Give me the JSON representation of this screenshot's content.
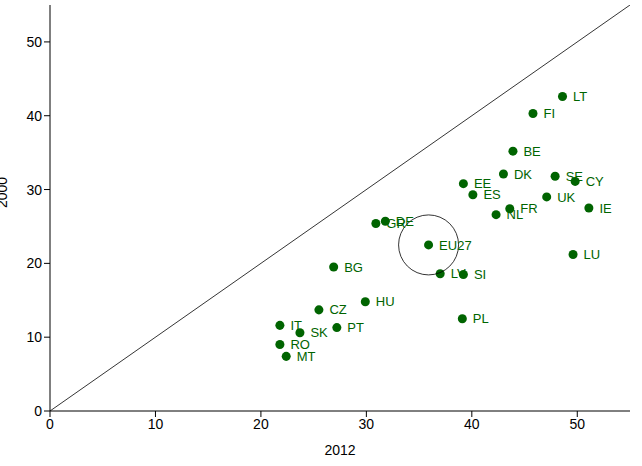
{
  "chart_data": {
    "type": "scatter",
    "x_label": "2012",
    "y_label": "2000",
    "xlim": [
      0,
      55
    ],
    "ylim": [
      0,
      55
    ],
    "xticks": [
      0,
      10,
      20,
      30,
      40,
      50
    ],
    "yticks": [
      0,
      10,
      20,
      30,
      40,
      50
    ],
    "grid": false,
    "marker": "circle",
    "diagonal": true,
    "highlight": "EU27",
    "series": [
      {
        "color": "#006400",
        "labels": [
          "LT",
          "FI",
          "BE",
          "SE",
          "CY",
          "DK",
          "EE",
          "ES",
          "UK",
          "FR",
          "IE",
          "NL",
          "DE",
          "GR",
          "EU27",
          "LU",
          "LV",
          "SI",
          "BG",
          "HU",
          "PL",
          "CZ",
          "IT",
          "SK",
          "PT",
          "RO",
          "MT"
        ],
        "x": [
          48.6,
          45.8,
          43.9,
          47.9,
          49.8,
          43.0,
          39.2,
          40.1,
          47.1,
          43.6,
          51.1,
          42.3,
          31.8,
          30.9,
          35.9,
          49.6,
          37.0,
          39.2,
          26.9,
          29.9,
          39.1,
          25.5,
          21.8,
          23.7,
          27.2,
          21.8,
          22.4
        ],
        "y": [
          42.6,
          40.3,
          35.2,
          31.8,
          31.1,
          32.1,
          30.8,
          29.3,
          29.0,
          27.4,
          27.5,
          26.6,
          25.7,
          25.4,
          22.5,
          21.2,
          18.6,
          18.5,
          19.5,
          14.8,
          12.5,
          13.7,
          11.6,
          10.6,
          11.3,
          9.0,
          7.4
        ]
      }
    ]
  }
}
